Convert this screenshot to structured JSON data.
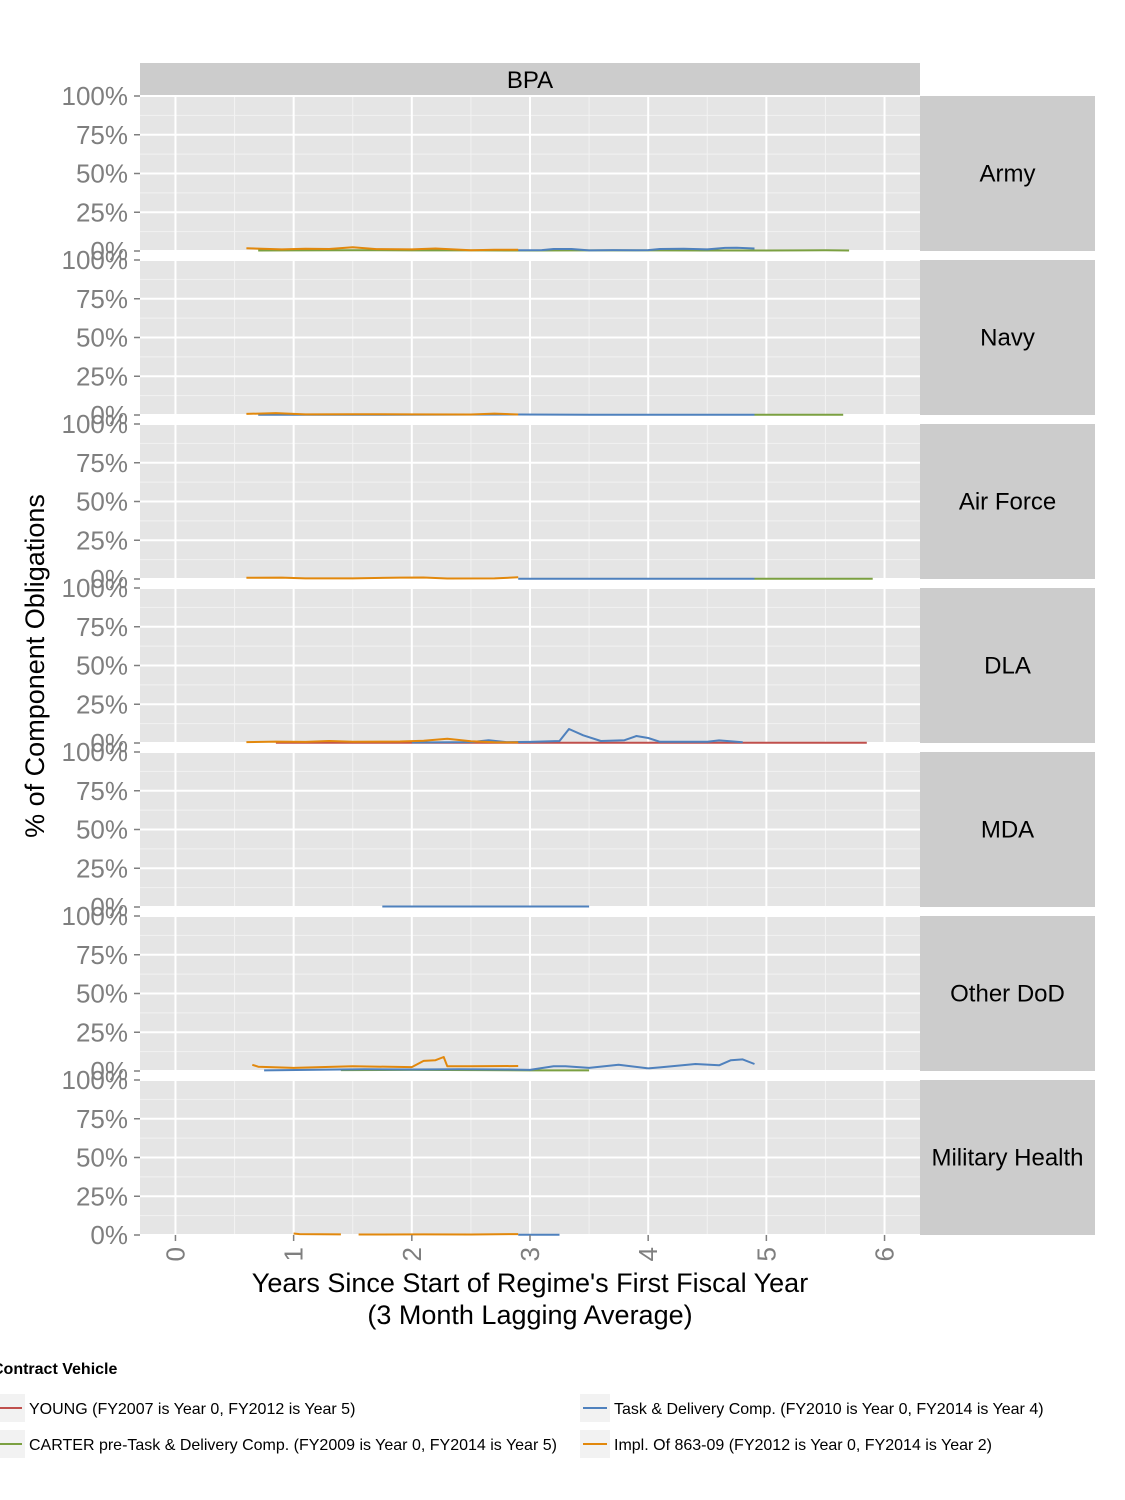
{
  "chart_data": {
    "type": "line",
    "facet_column": "BPA",
    "xlabel": "Years Since Start of Regime's First Fiscal Year",
    "xlabel_line2": "(3 Month Lagging Average)",
    "ylabel": "% of Component Obligations",
    "xlim": [
      -0.3,
      6.3
    ],
    "ylim": [
      0,
      1
    ],
    "x_ticks": [
      0,
      1,
      2,
      3,
      4,
      5,
      6
    ],
    "x_tick_labels": [
      "0",
      "1",
      "2",
      "3",
      "4",
      "5",
      "6"
    ],
    "y_ticks": [
      0,
      0.25,
      0.5,
      0.75,
      1
    ],
    "y_tick_labels": [
      "0%",
      "25%",
      "50%",
      "75%",
      "100%"
    ],
    "grid": true,
    "legend": {
      "title": "Contract Vehicle",
      "position": "bottom",
      "entries": [
        {
          "label": "YOUNG (FY2007 is Year 0, FY2012 is Year 5)",
          "color": "#c0504d"
        },
        {
          "label": "Task & Delivery Comp. (FY2010 is Year 0, FY2014 is Year 4)",
          "color": "#4f81bd"
        },
        {
          "label": "CARTER pre-Task & Delivery Comp. (FY2009 is Year 0, FY2014 is Year 5)",
          "color": "#7ba041"
        },
        {
          "label": "Impl. Of 863-09 (FY2012 is Year 0, FY2014 is Year 2)",
          "color": "#e2880c"
        }
      ]
    },
    "panels": [
      {
        "name": "Army",
        "series": [
          {
            "name": "CARTER pre-Task & Delivery Comp. (FY2009 is Year 0, FY2014 is Year 5)",
            "color": "#7ba041",
            "x": [
              0.7,
              1.0,
              1.5,
              2.0,
              2.5,
              3.0,
              3.5,
              4.0,
              4.5,
              5.0,
              5.3,
              5.5,
              5.7
            ],
            "y": [
              0.003,
              0.004,
              0.005,
              0.004,
              0.004,
              0.003,
              0.004,
              0.004,
              0.003,
              0.003,
              0.004,
              0.005,
              0.003
            ]
          },
          {
            "name": "Task & Delivery Comp. (FY2010 is Year 0, FY2014 is Year 4)",
            "color": "#4f81bd",
            "x": [
              2.9,
              3.1,
              3.2,
              3.35,
              3.5,
              3.7,
              3.9,
              4.0,
              4.1,
              4.3,
              4.5,
              4.65,
              4.75,
              4.9
            ],
            "y": [
              0.005,
              0.006,
              0.013,
              0.013,
              0.004,
              0.006,
              0.005,
              0.006,
              0.013,
              0.015,
              0.01,
              0.02,
              0.021,
              0.016
            ]
          },
          {
            "name": "Impl. Of 863-09 (FY2012 is Year 0, FY2014 is Year 2)",
            "color": "#e2880c",
            "x": [
              0.6,
              0.9,
              1.1,
              1.3,
              1.5,
              1.7,
              2.0,
              2.2,
              2.5,
              2.7,
              2.9
            ],
            "y": [
              0.018,
              0.01,
              0.015,
              0.013,
              0.024,
              0.012,
              0.01,
              0.016,
              0.005,
              0.008,
              0.008
            ]
          }
        ]
      },
      {
        "name": "Navy",
        "series": [
          {
            "name": "CARTER pre-Task & Delivery Comp. (FY2009 is Year 0, FY2014 is Year 5)",
            "color": "#7ba041",
            "x": [
              4.9,
              5.65
            ],
            "y": [
              0.002,
              0.002
            ]
          },
          {
            "name": "Task & Delivery Comp. (FY2010 is Year 0, FY2014 is Year 4)",
            "color": "#4f81bd",
            "x": [
              0.7,
              1.5,
              2.9,
              3.5,
              4.9
            ],
            "y": [
              0.001,
              0.001,
              0.003,
              0.002,
              0.002
            ]
          },
          {
            "name": "Impl. Of 863-09 (FY2012 is Year 0, FY2014 is Year 2)",
            "color": "#e2880c",
            "x": [
              0.6,
              0.85,
              1.1,
              1.5,
              2.0,
              2.5,
              2.7,
              2.9
            ],
            "y": [
              0.007,
              0.012,
              0.004,
              0.005,
              0.004,
              0.003,
              0.009,
              0.003
            ]
          }
        ]
      },
      {
        "name": "Air Force",
        "series": [
          {
            "name": "CARTER pre-Task & Delivery Comp. (FY2009 is Year 0, FY2014 is Year 5)",
            "color": "#7ba041",
            "x": [
              4.9,
              5.9
            ],
            "y": [
              0.002,
              0.002
            ]
          },
          {
            "name": "Task & Delivery Comp. (FY2010 is Year 0, FY2014 is Year 4)",
            "color": "#4f81bd",
            "x": [
              2.9,
              4.9
            ],
            "y": [
              0.002,
              0.002
            ]
          },
          {
            "name": "Impl. Of 863-09 (FY2012 is Year 0, FY2014 is Year 2)",
            "color": "#e2880c",
            "x": [
              0.6,
              0.9,
              1.1,
              1.5,
              1.9,
              2.1,
              2.3,
              2.7,
              2.9
            ],
            "y": [
              0.008,
              0.009,
              0.004,
              0.004,
              0.009,
              0.01,
              0.003,
              0.004,
              0.011
            ]
          }
        ]
      },
      {
        "name": "DLA",
        "series": [
          {
            "name": "YOUNG (FY2007 is Year 0, FY2012 is Year 5)",
            "color": "#c0504d",
            "x": [
              0.85,
              5.85
            ],
            "y": [
              0.001,
              0.001
            ]
          },
          {
            "name": "Task & Delivery Comp. (FY2010 is Year 0, FY2014 is Year 4)",
            "color": "#4f81bd",
            "x": [
              2.0,
              2.5,
              2.65,
              2.8,
              3.0,
              3.25,
              3.33,
              3.45,
              3.6,
              3.8,
              3.9,
              4.0,
              4.1,
              4.5,
              4.6,
              4.8
            ],
            "y": [
              0.003,
              0.006,
              0.018,
              0.006,
              0.007,
              0.013,
              0.09,
              0.05,
              0.013,
              0.018,
              0.045,
              0.032,
              0.008,
              0.008,
              0.017,
              0.005
            ]
          },
          {
            "name": "Impl. Of 863-09 (FY2012 is Year 0, FY2014 is Year 2)",
            "color": "#e2880c",
            "x": [
              0.6,
              0.85,
              1.1,
              1.3,
              1.5,
              1.9,
              2.1,
              2.3,
              2.5,
              2.7,
              2.9
            ],
            "y": [
              0.006,
              0.009,
              0.007,
              0.013,
              0.008,
              0.01,
              0.015,
              0.028,
              0.011,
              0.005,
              0.004
            ]
          }
        ]
      },
      {
        "name": "MDA",
        "series": [
          {
            "name": "Task & Delivery Comp. (FY2010 is Year 0, FY2014 is Year 4)",
            "color": "#4f81bd",
            "x": [
              1.75,
              3.5
            ],
            "y": [
              0.003,
              0.003
            ]
          }
        ]
      },
      {
        "name": "Other DoD",
        "series": [
          {
            "name": "CARTER pre-Task & Delivery Comp. (FY2009 is Year 0, FY2014 is Year 5)",
            "color": "#7ba041",
            "x": [
              1.4,
              2.0,
              2.6,
              3.0,
              3.5
            ],
            "y": [
              0.006,
              0.007,
              0.006,
              0.004,
              0.004
            ]
          },
          {
            "name": "Task & Delivery Comp. (FY2010 is Year 0, FY2014 is Year 4)",
            "color": "#4f81bd",
            "x": [
              0.75,
              1.2,
              1.6,
              2.0,
              2.4,
              2.8,
              3.0,
              3.2,
              3.3,
              3.5,
              3.75,
              4.0,
              4.1,
              4.4,
              4.6,
              4.7,
              4.8,
              4.9
            ],
            "y": [
              0.004,
              0.008,
              0.011,
              0.01,
              0.011,
              0.01,
              0.007,
              0.03,
              0.03,
              0.02,
              0.04,
              0.017,
              0.023,
              0.045,
              0.037,
              0.07,
              0.075,
              0.045
            ]
          },
          {
            "name": "Impl. Of 863-09 (FY2012 is Year 0, FY2014 is Year 2)",
            "color": "#e2880c",
            "x": [
              0.65,
              0.7,
              1.0,
              1.5,
              2.0,
              2.1,
              2.2,
              2.27,
              2.3,
              2.5,
              2.9
            ],
            "y": [
              0.04,
              0.028,
              0.02,
              0.03,
              0.025,
              0.065,
              0.07,
              0.09,
              0.03,
              0.03,
              0.032
            ]
          }
        ]
      },
      {
        "name": "Military Health",
        "series": [
          {
            "name": "Task & Delivery Comp. (FY2010 is Year 0, FY2014 is Year 4)",
            "color": "#4f81bd",
            "x": [
              2.9,
              3.25
            ],
            "y": [
              0.002,
              0.002
            ]
          },
          {
            "name": "Impl. Of 863-09 (FY2012 is Year 0, FY2014 is Year 2)",
            "color": "#e2880c",
            "x": [
              1.0,
              1.05,
              1.4
            ],
            "y": [
              0.01,
              0.006,
              0.004
            ]
          },
          {
            "name": "Impl. Of 863-09 (FY2012 is Year 0, FY2014 is Year 2)",
            "color": "#e2880c",
            "x": [
              1.55,
              2.1,
              2.5,
              2.9
            ],
            "y": [
              0.003,
              0.004,
              0.003,
              0.006
            ]
          }
        ]
      }
    ]
  }
}
